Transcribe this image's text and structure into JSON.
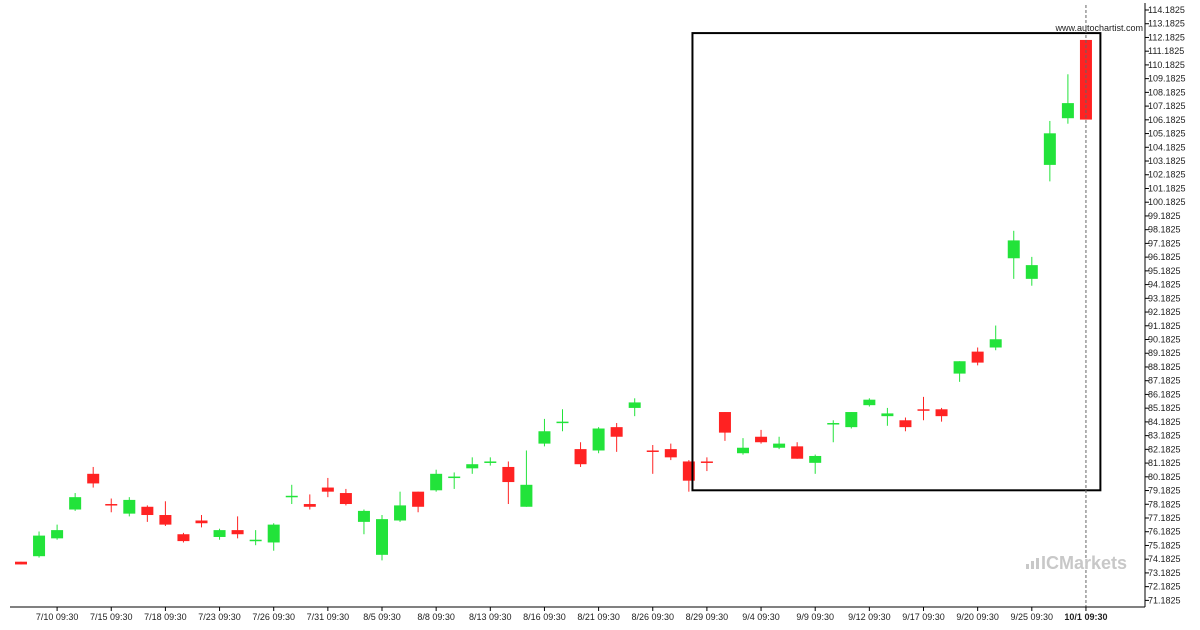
{
  "watermark": "www.autochartist.com",
  "brand": {
    "name": "ICMarkets",
    "color": "#c8c8c8"
  },
  "colors": {
    "up": "#22e33a",
    "down": "#ff2222",
    "pattern_box": "#000000",
    "current_line": "#666666"
  },
  "chart_data": {
    "type": "candlestick",
    "title": "",
    "xlabel": "",
    "ylabel": "",
    "ylim": [
      70.7,
      114.4
    ],
    "y_ticks": [
      "114.1825",
      "113.1825",
      "112.1825",
      "111.1825",
      "110.1825",
      "109.1825",
      "108.1825",
      "107.1825",
      "106.1825",
      "105.1825",
      "104.1825",
      "103.1825",
      "102.1825",
      "101.1825",
      "100.1825",
      "99.1825",
      "98.1825",
      "97.1825",
      "96.1825",
      "95.1825",
      "94.1825",
      "93.1825",
      "92.1825",
      "91.1825",
      "90.1825",
      "89.1825",
      "88.1825",
      "87.1825",
      "86.1825",
      "85.1825",
      "84.1825",
      "83.1825",
      "82.1825",
      "81.1825",
      "80.1825",
      "79.1825",
      "78.1825",
      "77.1825",
      "76.1825",
      "75.1825",
      "74.1825",
      "73.1825",
      "72.1825",
      "71.1825"
    ],
    "x_labels": [
      {
        "text": "7/10 09:30",
        "bar": 2
      },
      {
        "text": "7/15 09:30",
        "bar": 5
      },
      {
        "text": "7/18 09:30",
        "bar": 8
      },
      {
        "text": "7/23 09:30",
        "bar": 11
      },
      {
        "text": "7/26 09:30",
        "bar": 14
      },
      {
        "text": "7/31 09:30",
        "bar": 17
      },
      {
        "text": "8/5 09:30",
        "bar": 20
      },
      {
        "text": "8/8 09:30",
        "bar": 23
      },
      {
        "text": "8/13 09:30",
        "bar": 26
      },
      {
        "text": "8/16 09:30",
        "bar": 29
      },
      {
        "text": "8/21 09:30",
        "bar": 32
      },
      {
        "text": "8/26 09:30",
        "bar": 35
      },
      {
        "text": "8/29 09:30",
        "bar": 38
      },
      {
        "text": "9/4 09:30",
        "bar": 41
      },
      {
        "text": "9/9 09:30",
        "bar": 44
      },
      {
        "text": "9/12 09:30",
        "bar": 47
      },
      {
        "text": "9/17 09:30",
        "bar": 50
      },
      {
        "text": "9/20 09:30",
        "bar": 53
      },
      {
        "text": "9/25 09:30",
        "bar": 56
      },
      {
        "text": "10/1 09:30",
        "bar": 59,
        "bold": true
      }
    ],
    "candles": [
      {
        "o": 74.0,
        "h": 74.0,
        "l": 73.8,
        "c": 73.8
      },
      {
        "o": 74.4,
        "h": 76.2,
        "l": 74.3,
        "c": 75.9
      },
      {
        "o": 75.7,
        "h": 76.7,
        "l": 75.6,
        "c": 76.3
      },
      {
        "o": 77.8,
        "h": 79.0,
        "l": 77.7,
        "c": 78.7
      },
      {
        "o": 80.4,
        "h": 80.9,
        "l": 79.4,
        "c": 79.7
      },
      {
        "o": 78.2,
        "h": 78.6,
        "l": 77.6,
        "c": 78.1
      },
      {
        "o": 77.5,
        "h": 78.7,
        "l": 77.3,
        "c": 78.5
      },
      {
        "o": 78.0,
        "h": 78.1,
        "l": 76.9,
        "c": 77.4
      },
      {
        "o": 77.4,
        "h": 78.4,
        "l": 76.6,
        "c": 76.7
      },
      {
        "o": 76.0,
        "h": 76.1,
        "l": 75.4,
        "c": 75.5
      },
      {
        "o": 77.0,
        "h": 77.4,
        "l": 76.5,
        "c": 76.8
      },
      {
        "o": 75.8,
        "h": 76.4,
        "l": 75.6,
        "c": 76.3
      },
      {
        "o": 76.3,
        "h": 77.3,
        "l": 75.7,
        "c": 76.0
      },
      {
        "o": 75.5,
        "h": 76.3,
        "l": 75.2,
        "c": 75.6
      },
      {
        "o": 75.4,
        "h": 76.8,
        "l": 74.8,
        "c": 76.7
      },
      {
        "o": 78.7,
        "h": 79.6,
        "l": 78.2,
        "c": 78.8
      },
      {
        "o": 78.2,
        "h": 78.9,
        "l": 77.8,
        "c": 78.0
      },
      {
        "o": 79.4,
        "h": 80.1,
        "l": 78.7,
        "c": 79.1
      },
      {
        "o": 79.0,
        "h": 79.3,
        "l": 78.1,
        "c": 78.2
      },
      {
        "o": 76.9,
        "h": 77.8,
        "l": 76.0,
        "c": 77.7
      },
      {
        "o": 74.5,
        "h": 77.4,
        "l": 74.1,
        "c": 77.1
      },
      {
        "o": 77.0,
        "h": 79.1,
        "l": 76.9,
        "c": 78.1
      },
      {
        "o": 79.1,
        "h": 79.1,
        "l": 77.6,
        "c": 78.0
      },
      {
        "o": 79.2,
        "h": 80.7,
        "l": 79.1,
        "c": 80.4
      },
      {
        "o": 80.1,
        "h": 80.5,
        "l": 79.3,
        "c": 80.2
      },
      {
        "o": 80.8,
        "h": 81.6,
        "l": 80.4,
        "c": 81.1
      },
      {
        "o": 81.2,
        "h": 81.6,
        "l": 81.0,
        "c": 81.3
      },
      {
        "o": 80.9,
        "h": 81.3,
        "l": 78.2,
        "c": 79.8
      },
      {
        "o": 78.0,
        "h": 82.1,
        "l": 78.0,
        "c": 79.6
      },
      {
        "o": 82.6,
        "h": 84.4,
        "l": 82.4,
        "c": 83.5
      },
      {
        "o": 84.1,
        "h": 85.1,
        "l": 83.5,
        "c": 84.2
      },
      {
        "o": 82.2,
        "h": 82.7,
        "l": 80.9,
        "c": 81.1
      },
      {
        "o": 82.1,
        "h": 83.8,
        "l": 81.9,
        "c": 83.7
      },
      {
        "o": 83.8,
        "h": 84.1,
        "l": 82.0,
        "c": 83.1
      },
      {
        "o": 85.2,
        "h": 85.9,
        "l": 84.6,
        "c": 85.6
      },
      {
        "o": 82.1,
        "h": 82.5,
        "l": 80.4,
        "c": 82.0
      },
      {
        "o": 82.2,
        "h": 82.6,
        "l": 81.4,
        "c": 81.6
      },
      {
        "o": 81.3,
        "h": 81.4,
        "l": 79.1,
        "c": 79.9
      },
      {
        "o": 81.3,
        "h": 81.6,
        "l": 80.6,
        "c": 81.2
      },
      {
        "o": 84.9,
        "h": 84.9,
        "l": 82.8,
        "c": 83.4
      },
      {
        "o": 81.9,
        "h": 83.0,
        "l": 81.8,
        "c": 82.3
      },
      {
        "o": 83.1,
        "h": 83.6,
        "l": 82.6,
        "c": 82.7
      },
      {
        "o": 82.3,
        "h": 83.1,
        "l": 82.2,
        "c": 82.6
      },
      {
        "o": 82.4,
        "h": 82.7,
        "l": 81.5,
        "c": 81.5
      },
      {
        "o": 81.2,
        "h": 81.8,
        "l": 80.4,
        "c": 81.7
      },
      {
        "o": 84.0,
        "h": 84.3,
        "l": 82.7,
        "c": 84.1
      },
      {
        "o": 83.8,
        "h": 84.9,
        "l": 83.7,
        "c": 84.9
      },
      {
        "o": 85.4,
        "h": 85.9,
        "l": 85.3,
        "c": 85.8
      },
      {
        "o": 84.6,
        "h": 85.2,
        "l": 83.9,
        "c": 84.8
      },
      {
        "o": 84.3,
        "h": 84.5,
        "l": 83.5,
        "c": 83.8
      },
      {
        "o": 85.1,
        "h": 86.0,
        "l": 84.3,
        "c": 85.0
      },
      {
        "o": 85.1,
        "h": 85.2,
        "l": 84.2,
        "c": 84.6
      },
      {
        "o": 87.7,
        "h": 88.6,
        "l": 87.1,
        "c": 88.6
      },
      {
        "o": 89.3,
        "h": 89.6,
        "l": 88.3,
        "c": 88.5
      },
      {
        "o": 89.6,
        "h": 91.2,
        "l": 89.4,
        "c": 90.2
      },
      {
        "o": 96.1,
        "h": 98.1,
        "l": 94.6,
        "c": 97.4
      },
      {
        "o": 94.6,
        "h": 96.2,
        "l": 94.1,
        "c": 95.6
      },
      {
        "o": 102.9,
        "h": 106.1,
        "l": 101.7,
        "c": 105.2
      },
      {
        "o": 106.3,
        "h": 109.5,
        "l": 105.9,
        "c": 107.4
      },
      {
        "o": 112.0,
        "h": 112.0,
        "l": 106.2,
        "c": 106.2
      }
    ],
    "pattern_box": {
      "bar_start": 37.2,
      "bar_end": 59.8,
      "price_top": 112.5,
      "price_bottom": 79.2
    },
    "current_bar": 59
  }
}
